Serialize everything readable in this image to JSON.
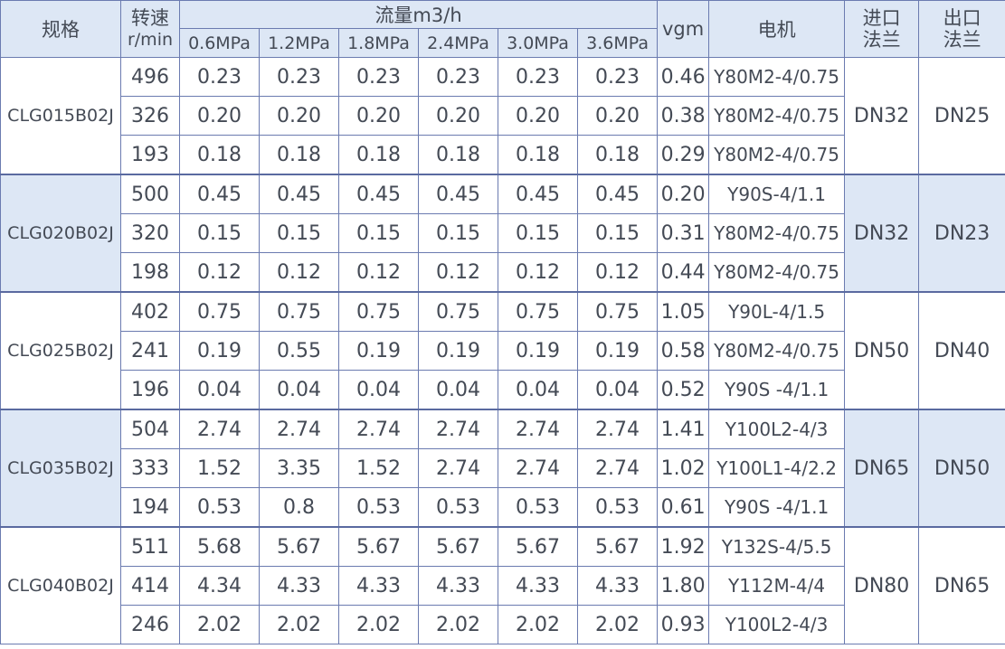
{
  "header": {
    "spec": "规格",
    "speed_top": "转速",
    "speed_bottom": "r/min",
    "flow": "流量m3/h",
    "pressures": [
      "0.6MPa",
      "1.2MPa",
      "1.8MPa",
      "2.4MPa",
      "3.0MPa",
      "3.6MPa"
    ],
    "vgm": "vgm",
    "motor": "电机",
    "inlet_top": "进口",
    "inlet_bottom": "法兰",
    "outlet_top": "出口",
    "outlet_bottom": "法兰"
  },
  "groups": [
    {
      "model": "CLG015B02J",
      "inlet": "DN32",
      "outlet": "DN25",
      "rows": [
        {
          "speed": "496",
          "flows": [
            "0.23",
            "0.23",
            "0.23",
            "0.23",
            "0.23",
            "0.23"
          ],
          "vgm": "0.46",
          "motor": "Y80M2-4/0.75"
        },
        {
          "speed": "326",
          "flows": [
            "0.20",
            "0.20",
            "0.20",
            "0.20",
            "0.20",
            "0.20"
          ],
          "vgm": "0.38",
          "motor": "Y80M2-4/0.75"
        },
        {
          "speed": "193",
          "flows": [
            "0.18",
            "0.18",
            "0.18",
            "0.18",
            "0.18",
            "0.18"
          ],
          "vgm": "0.29",
          "motor": "Y80M2-4/0.75"
        }
      ]
    },
    {
      "model": "CLG020B02J",
      "inlet": "DN32",
      "outlet": "DN23",
      "rows": [
        {
          "speed": "500",
          "flows": [
            "0.45",
            "0.45",
            "0.45",
            "0.45",
            "0.45",
            "0.45"
          ],
          "vgm": "0.20",
          "motor": "Y90S-4/1.1"
        },
        {
          "speed": "320",
          "flows": [
            "0.15",
            "0.15",
            "0.15",
            "0.15",
            "0.15",
            "0.15"
          ],
          "vgm": "0.31",
          "motor": "Y80M2-4/0.75"
        },
        {
          "speed": "198",
          "flows": [
            "0.12",
            "0.12",
            "0.12",
            "0.12",
            "0.12",
            "0.12"
          ],
          "vgm": "0.44",
          "motor": "Y80M2-4/0.75"
        }
      ]
    },
    {
      "model": "CLG025B02J",
      "inlet": "DN50",
      "outlet": "DN40",
      "rows": [
        {
          "speed": "402",
          "flows": [
            "0.75",
            "0.75",
            "0.75",
            "0.75",
            "0.75",
            "0.75"
          ],
          "vgm": "1.05",
          "motor": "Y90L-4/1.5"
        },
        {
          "speed": "241",
          "flows": [
            "0.19",
            "0.55",
            "0.19",
            "0.19",
            "0.19",
            "0.19"
          ],
          "vgm": "0.58",
          "motor": "Y80M2-4/0.75"
        },
        {
          "speed": "196",
          "flows": [
            "0.04",
            "0.04",
            "0.04",
            "0.04",
            "0.04",
            "0.04"
          ],
          "vgm": "0.52",
          "motor": "Y90S -4/1.1"
        }
      ]
    },
    {
      "model": "CLG035B02J",
      "inlet": "DN65",
      "outlet": "DN50",
      "rows": [
        {
          "speed": "504",
          "flows": [
            "2.74",
            "2.74",
            "2.74",
            "2.74",
            "2.74",
            "2.74"
          ],
          "vgm": "1.41",
          "motor": "Y100L2-4/3"
        },
        {
          "speed": "333",
          "flows": [
            "1.52",
            "3.35",
            "1.52",
            "2.74",
            "2.74",
            "2.74"
          ],
          "vgm": "1.02",
          "motor": "Y100L1-4/2.2"
        },
        {
          "speed": "194",
          "flows": [
            "0.53",
            "0.8",
            "0.53",
            "0.53",
            "0.53",
            "0.53"
          ],
          "vgm": "0.61",
          "motor": "Y90S -4/1.1"
        }
      ]
    },
    {
      "model": "CLG040B02J",
      "inlet": "DN80",
      "outlet": "DN65",
      "rows": [
        {
          "speed": "511",
          "flows": [
            "5.68",
            "5.67",
            "5.67",
            "5.67",
            "5.67",
            "5.67"
          ],
          "vgm": "1.92",
          "motor": "Y132S-4/5.5"
        },
        {
          "speed": "414",
          "flows": [
            "4.34",
            "4.33",
            "4.33",
            "4.33",
            "4.33",
            "4.33"
          ],
          "vgm": "1.80",
          "motor": "Y112M-4/4"
        },
        {
          "speed": "246",
          "flows": [
            "2.02",
            "2.02",
            "2.02",
            "2.02",
            "2.02",
            "2.02"
          ],
          "vgm": "0.93",
          "motor": "Y100L2-4/3"
        }
      ]
    }
  ]
}
